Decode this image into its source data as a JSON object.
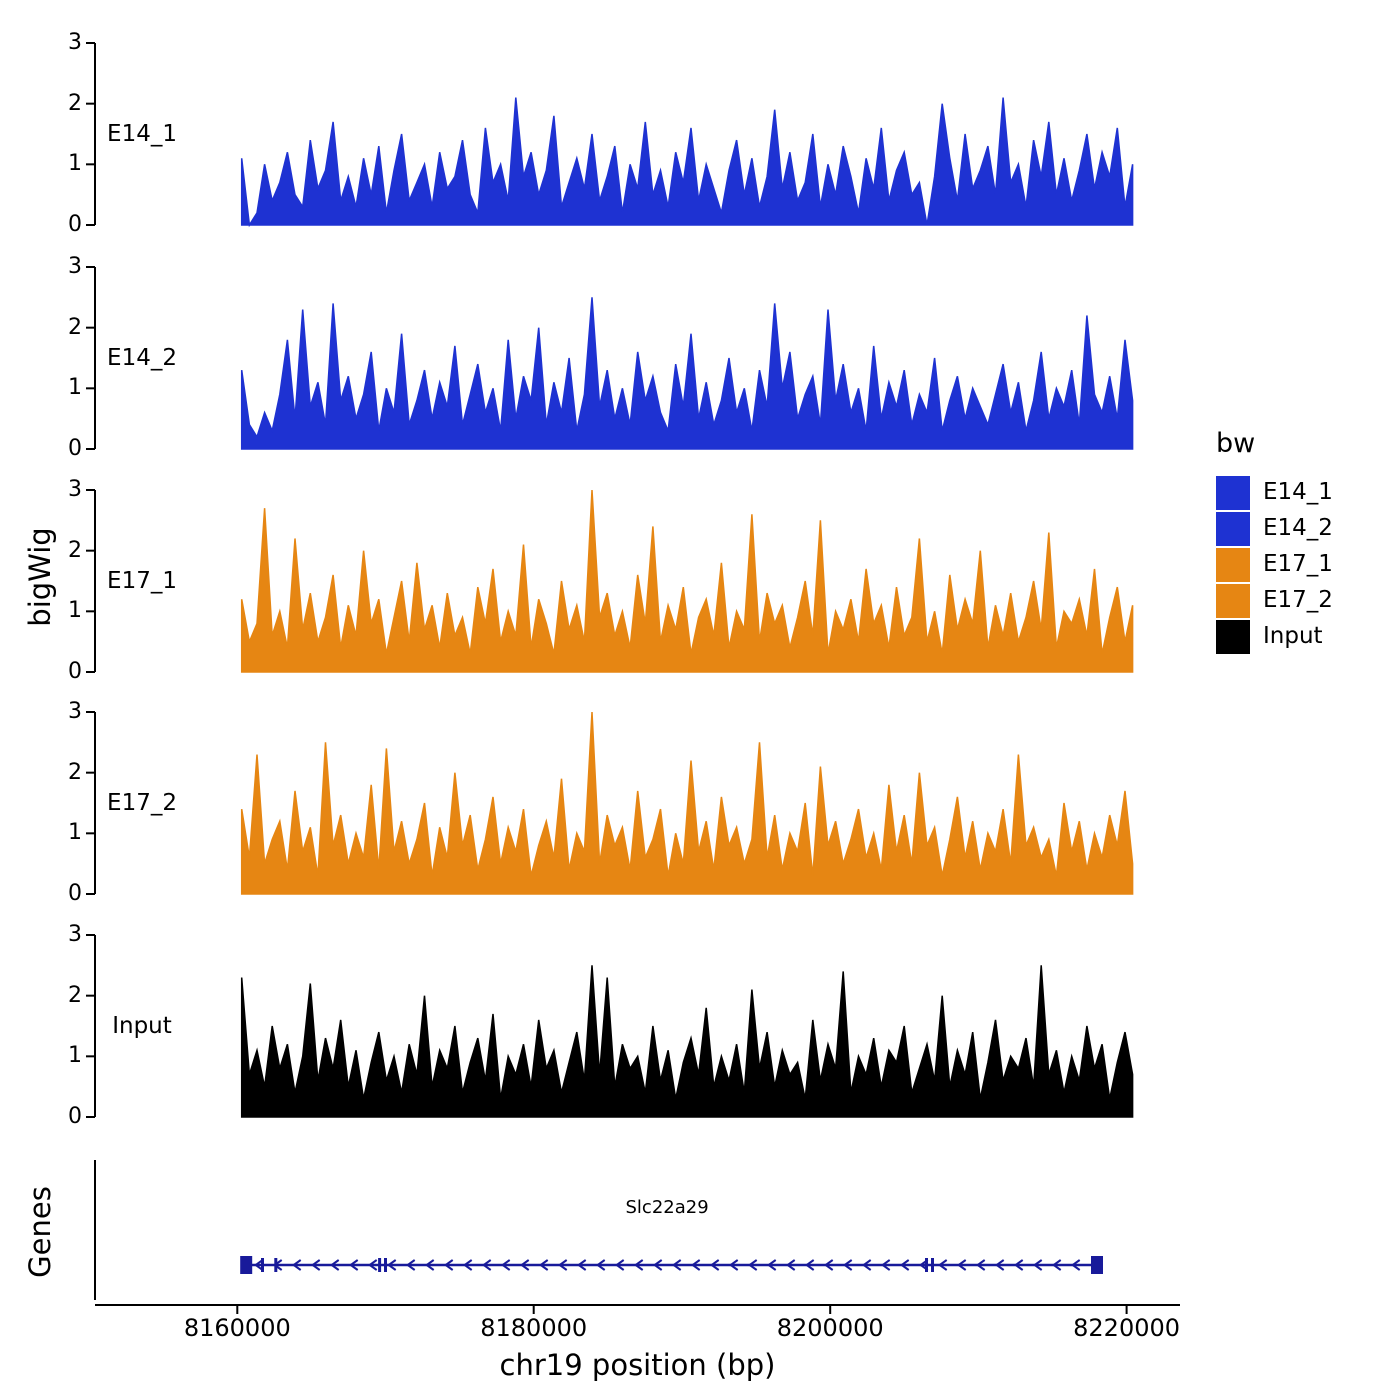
{
  "chart_data": {
    "type": "area",
    "title": "",
    "ylabel": "bigWig",
    "genes_panel_label": "Genes",
    "xlabel": "chr19 position (bp)",
    "ylim": [
      0,
      3
    ],
    "y_ticks": [
      "0",
      "1",
      "2",
      "3"
    ],
    "x_domain_bp": [
      8150400,
      8223600
    ],
    "data_range_bp": [
      8160300,
      8220400
    ],
    "x_ticks": [
      {
        "bp": 8160000,
        "label": "8160000"
      },
      {
        "bp": 8180000,
        "label": "8180000"
      },
      {
        "bp": 8200000,
        "label": "8200000"
      },
      {
        "bp": 8220000,
        "label": "8220000"
      }
    ],
    "tracks": [
      {
        "id": "E14_1",
        "label": "E14_1",
        "color": "#1e32d2",
        "values": [
          1.1,
          0,
          0.2,
          1.0,
          0.4,
          0.7,
          1.2,
          0.5,
          0.3,
          1.4,
          0.6,
          0.9,
          1.7,
          0.4,
          0.8,
          0.3,
          1.1,
          0.5,
          1.3,
          0.2,
          0.9,
          1.5,
          0.4,
          0.7,
          1.0,
          0.3,
          1.2,
          0.6,
          0.8,
          1.4,
          0.5,
          0.2,
          1.6,
          0.7,
          1.0,
          0.4,
          2.1,
          0.8,
          1.2,
          0.5,
          0.9,
          1.8,
          0.3,
          0.7,
          1.1,
          0.6,
          1.5,
          0.4,
          0.8,
          1.3,
          0.2,
          1.0,
          0.6,
          1.7,
          0.5,
          0.9,
          0.3,
          1.2,
          0.7,
          1.6,
          0.4,
          1.0,
          0.6,
          0.2,
          0.9,
          1.4,
          0.5,
          1.1,
          0.3,
          0.8,
          1.9,
          0.6,
          1.2,
          0.4,
          0.7,
          1.5,
          0.3,
          1.0,
          0.5,
          1.3,
          0.8,
          0.2,
          1.1,
          0.6,
          1.6,
          0.4,
          0.9,
          1.2,
          0.5,
          0.7,
          0,
          0.8,
          2.0,
          1.1,
          0.4,
          1.5,
          0.6,
          0.9,
          1.3,
          0.5,
          2.1,
          0.7,
          1.0,
          0.3,
          1.4,
          0.8,
          1.7,
          0.5,
          1.1,
          0.4,
          0.9,
          1.5,
          0.6,
          1.2,
          0.8,
          1.6,
          0.3,
          1.0
        ]
      },
      {
        "id": "E14_2",
        "label": "E14_2",
        "color": "#1e32d2",
        "values": [
          1.3,
          0.4,
          0.2,
          0.6,
          0.3,
          0.9,
          1.8,
          0.5,
          2.3,
          0.7,
          1.1,
          0.4,
          2.4,
          0.8,
          1.2,
          0.5,
          0.9,
          1.6,
          0.3,
          1.0,
          0.6,
          1.9,
          0.4,
          0.8,
          1.3,
          0.5,
          1.1,
          0.7,
          1.7,
          0.4,
          0.9,
          1.4,
          0.6,
          1.0,
          0.3,
          1.8,
          0.5,
          1.2,
          0.8,
          2.0,
          0.4,
          1.1,
          0.6,
          1.5,
          0.3,
          0.9,
          2.5,
          0.7,
          1.3,
          0.5,
          1.0,
          0.4,
          1.6,
          0.8,
          1.2,
          0.6,
          0.3,
          1.4,
          0.7,
          1.9,
          0.5,
          1.1,
          0.4,
          0.8,
          1.5,
          0.6,
          1.0,
          0.3,
          1.3,
          0.7,
          2.4,
          1.0,
          1.6,
          0.5,
          0.9,
          1.2,
          0.4,
          2.3,
          0.8,
          1.4,
          0.6,
          1.0,
          0.3,
          1.7,
          0.5,
          1.1,
          0.7,
          1.3,
          0.4,
          0.9,
          0.6,
          1.5,
          0.3,
          0.8,
          1.2,
          0.5,
          1.0,
          0.7,
          0.4,
          0.9,
          1.4,
          0.6,
          1.1,
          0.3,
          0.8,
          1.6,
          0.5,
          1.0,
          0.7,
          1.3,
          0.4,
          2.2,
          0.9,
          0.6,
          1.2,
          0.5,
          1.8,
          0.8
        ]
      },
      {
        "id": "E17_1",
        "label": "E17_1",
        "color": "#e68613",
        "values": [
          1.2,
          0.5,
          0.8,
          2.7,
          0.6,
          1.0,
          0.4,
          2.2,
          0.7,
          1.3,
          0.5,
          0.9,
          1.6,
          0.4,
          1.1,
          0.6,
          2.0,
          0.8,
          1.2,
          0.3,
          0.9,
          1.5,
          0.5,
          1.8,
          0.7,
          1.1,
          0.4,
          1.3,
          0.6,
          0.9,
          0.3,
          1.4,
          0.8,
          1.7,
          0.5,
          1.0,
          0.6,
          2.1,
          0.4,
          1.2,
          0.8,
          0.3,
          1.5,
          0.7,
          1.1,
          0.5,
          3.0,
          0.9,
          1.3,
          0.6,
          1.0,
          0.4,
          1.6,
          0.8,
          2.4,
          0.5,
          1.1,
          0.7,
          1.4,
          0.3,
          0.9,
          1.2,
          0.6,
          1.8,
          0.4,
          1.0,
          0.7,
          2.6,
          0.5,
          1.3,
          0.8,
          1.1,
          0.4,
          0.9,
          1.5,
          0.6,
          2.5,
          0.3,
          1.0,
          0.7,
          1.2,
          0.5,
          1.7,
          0.8,
          1.1,
          0.4,
          1.4,
          0.6,
          0.9,
          2.2,
          0.5,
          1.0,
          0.3,
          1.6,
          0.7,
          1.2,
          0.8,
          2.0,
          0.4,
          1.1,
          0.6,
          1.3,
          0.5,
          0.9,
          1.5,
          0.7,
          2.3,
          0.4,
          1.0,
          0.8,
          1.2,
          0.6,
          1.7,
          0.3,
          0.9,
          1.4,
          0.5,
          1.1
        ]
      },
      {
        "id": "E17_2",
        "label": "E17_2",
        "color": "#e68613",
        "values": [
          1.4,
          0.6,
          2.3,
          0.5,
          0.9,
          1.2,
          0.4,
          1.7,
          0.7,
          1.1,
          0.3,
          2.5,
          0.8,
          1.3,
          0.5,
          1.0,
          0.6,
          1.8,
          0.4,
          2.4,
          0.7,
          1.2,
          0.5,
          0.9,
          1.5,
          0.3,
          1.1,
          0.6,
          2.0,
          0.8,
          1.3,
          0.4,
          0.9,
          1.6,
          0.5,
          1.1,
          0.7,
          1.4,
          0.3,
          0.8,
          1.2,
          0.6,
          1.9,
          0.4,
          1.0,
          0.7,
          3.0,
          0.5,
          1.3,
          0.8,
          1.1,
          0.4,
          1.7,
          0.6,
          0.9,
          1.4,
          0.3,
          1.0,
          0.5,
          2.2,
          0.7,
          1.2,
          0.4,
          1.6,
          0.8,
          1.1,
          0.5,
          0.9,
          2.5,
          0.6,
          1.3,
          0.4,
          1.0,
          0.7,
          1.5,
          0.3,
          2.1,
          0.8,
          1.2,
          0.5,
          0.9,
          1.4,
          0.6,
          1.0,
          0.4,
          1.8,
          0.7,
          1.3,
          0.5,
          2.0,
          0.8,
          1.1,
          0.3,
          0.9,
          1.6,
          0.6,
          1.2,
          0.4,
          1.0,
          0.7,
          1.4,
          0.5,
          2.3,
          0.8,
          1.1,
          0.6,
          0.9,
          0.3,
          1.5,
          0.7,
          1.2,
          0.4,
          1.0,
          0.6,
          1.3,
          0.8,
          1.7,
          0.5
        ]
      },
      {
        "id": "Input",
        "label": "Input",
        "color": "#000000",
        "values": [
          2.3,
          0.7,
          1.1,
          0.5,
          1.5,
          0.8,
          1.2,
          0.4,
          1.0,
          2.2,
          0.6,
          1.3,
          0.8,
          1.6,
          0.5,
          1.1,
          0.3,
          0.9,
          1.4,
          0.6,
          1.0,
          0.4,
          1.2,
          0.7,
          2.0,
          0.5,
          1.1,
          0.8,
          1.5,
          0.4,
          0.9,
          1.3,
          0.6,
          1.7,
          0.3,
          1.0,
          0.7,
          1.2,
          0.5,
          1.6,
          0.8,
          1.1,
          0.4,
          0.9,
          1.4,
          0.6,
          2.5,
          0.7,
          2.3,
          0.5,
          1.2,
          0.8,
          1.0,
          0.4,
          1.5,
          0.6,
          1.1,
          0.3,
          0.9,
          1.3,
          0.7,
          1.8,
          0.5,
          1.0,
          0.6,
          1.2,
          0.4,
          2.1,
          0.8,
          1.4,
          0.5,
          1.1,
          0.7,
          0.9,
          0.3,
          1.6,
          0.6,
          1.2,
          0.8,
          2.4,
          0.4,
          1.0,
          0.7,
          1.3,
          0.5,
          1.1,
          0.9,
          1.5,
          0.4,
          0.8,
          1.2,
          0.6,
          2.0,
          0.5,
          1.1,
          0.7,
          1.4,
          0.3,
          0.9,
          1.6,
          0.6,
          1.0,
          0.8,
          1.3,
          0.5,
          2.5,
          0.7,
          1.1,
          0.4,
          1.0,
          0.6,
          1.5,
          0.8,
          1.2,
          0.3,
          0.9,
          1.4,
          0.7
        ]
      }
    ],
    "legend": {
      "title": "bw",
      "items": [
        {
          "label": "E14_1",
          "color": "#1e32d2"
        },
        {
          "label": "E14_2",
          "color": "#1e32d2"
        },
        {
          "label": "E17_1",
          "color": "#e68613"
        },
        {
          "label": "E17_2",
          "color": "#e68613"
        },
        {
          "label": "Input",
          "color": "#000000"
        }
      ]
    },
    "genes": {
      "name": "Slc22a29",
      "label_bp": 8189000,
      "strand": "-",
      "color": "#181a9a",
      "start_bp": 8160300,
      "end_bp": 8218200,
      "exons": [
        {
          "bp": 8160600,
          "type": "box"
        },
        {
          "bp": 8161700,
          "type": "tick"
        },
        {
          "bp": 8162600,
          "type": "tick"
        },
        {
          "bp": 8169600,
          "type": "tick"
        },
        {
          "bp": 8170000,
          "type": "tick"
        },
        {
          "bp": 8206500,
          "type": "tick"
        },
        {
          "bp": 8206900,
          "type": "tick"
        },
        {
          "bp": 8218000,
          "type": "box"
        }
      ]
    }
  }
}
